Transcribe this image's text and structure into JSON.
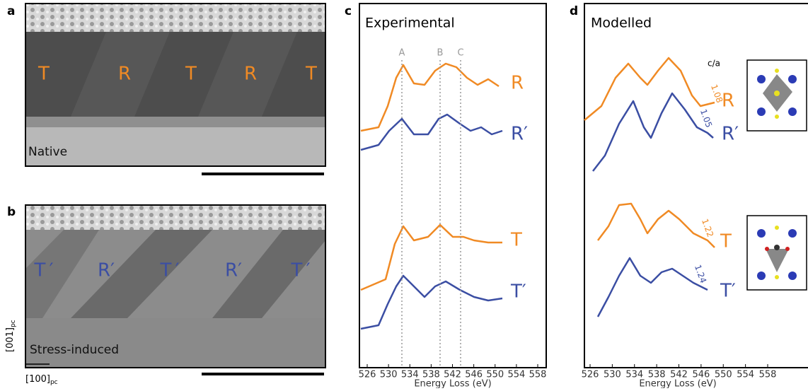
{
  "panels": {
    "a": {
      "label": "a",
      "annotations": [
        "T",
        "R",
        "T",
        "R",
        "T"
      ],
      "caption": "Native"
    },
    "b": {
      "label": "b",
      "annotations": [
        "T ′",
        "R′",
        "T ′",
        "R′",
        "T ′"
      ],
      "caption": "Stress-induced",
      "axis_y": {
        "text": "[001]",
        "sub": "pc"
      },
      "axis_x": {
        "text": "[100]",
        "sub": "pc"
      }
    },
    "c": {
      "label": "c",
      "title": "Experimental",
      "markers": [
        "A",
        "B",
        "C"
      ],
      "curve_labels": [
        "R",
        "R′",
        "T",
        "T′"
      ],
      "xticks": [
        526,
        530,
        534,
        538,
        542,
        546,
        550,
        554,
        558
      ],
      "xlabel": "Energy Loss (eV)"
    },
    "d": {
      "label": "d",
      "title": "Modelled",
      "ratio_label": "c/a",
      "ratios": [
        "1.08",
        "1.05",
        "1.22",
        "1.24"
      ],
      "curve_labels": [
        "R",
        "R′",
        "T",
        "T′"
      ],
      "xticks": [
        526,
        530,
        534,
        538,
        542,
        546,
        550,
        554,
        558
      ],
      "xlabel": "Energy Loss (eV)"
    }
  }
}
